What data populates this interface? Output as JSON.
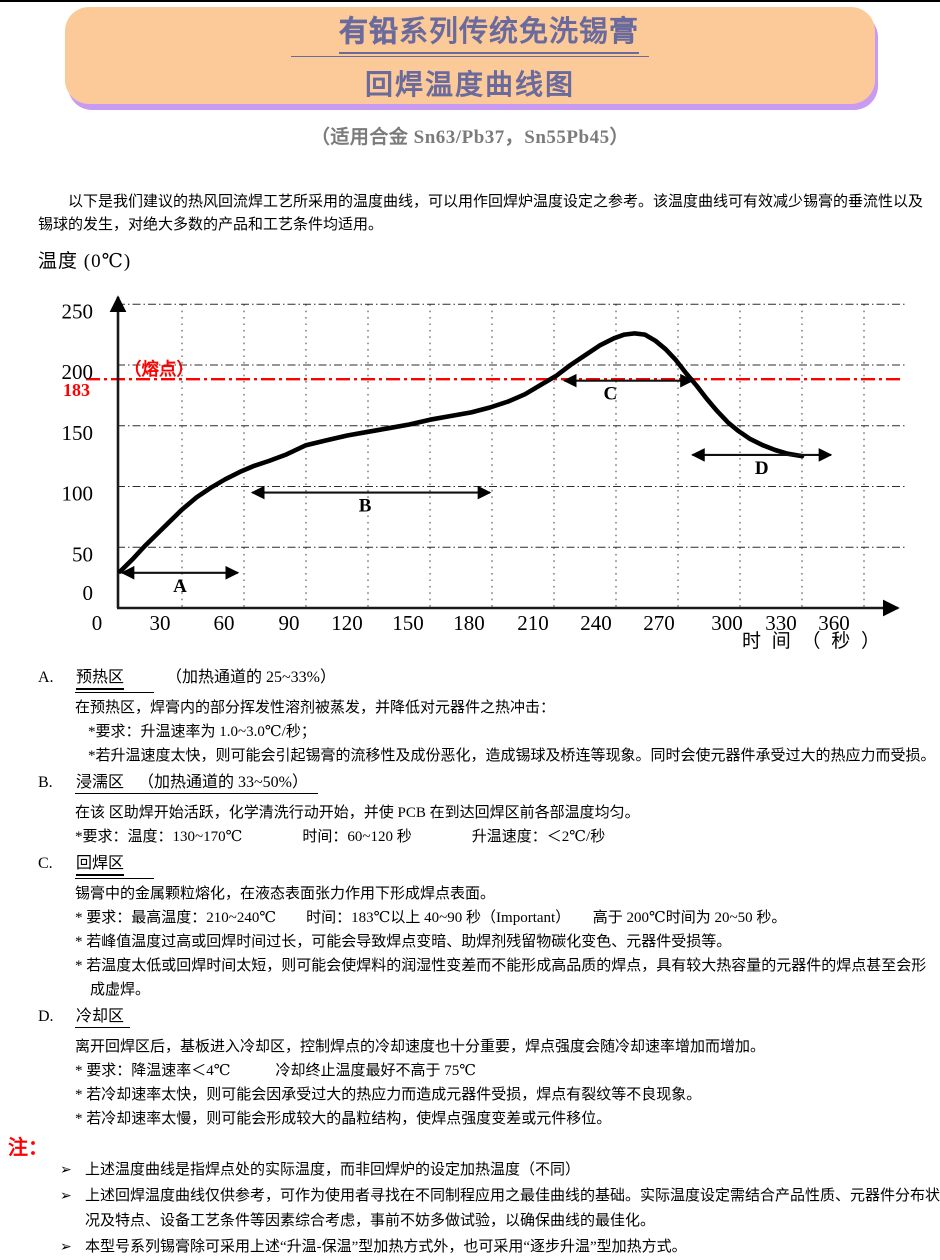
{
  "title": {
    "line1_bold": "有铅",
    "line1_rest": "系列传统免洗锡膏",
    "line2": "回焊温度曲线图",
    "subtitle": "（适用合金 Sn63/Pb37，Sn55Pb45）",
    "bg_color": "#fbca98",
    "shadow_color": "#c89af1",
    "text_color": "#6a6a9d"
  },
  "intro": "以下是我们建议的热风回流焊工艺所采用的温度曲线，可以用作回焊炉温度设定之参考。该温度曲线可有效减少锡膏的垂流性以及锡球的发生，对绝大多数的产品和工艺条件均适用。",
  "chart_data": {
    "type": "line",
    "title": "",
    "ylabel": "温度 (0℃)",
    "xlabel": "时 间 （ 秒 ）",
    "xlim": [
      0,
      390
    ],
    "ylim": [
      0,
      270
    ],
    "grid": true,
    "xticks": [
      0,
      30,
      60,
      90,
      120,
      150,
      180,
      210,
      240,
      270,
      300,
      330,
      360
    ],
    "yticks": [
      0,
      50,
      100,
      150,
      200,
      250
    ],
    "melting_point": {
      "value": 183,
      "label": "（熔点）",
      "tick_label": "183",
      "color": "#ff0000"
    },
    "series": [
      {
        "name": "reflow-temperature-profile",
        "points": [
          [
            0,
            30
          ],
          [
            6,
            40
          ],
          [
            12,
            51
          ],
          [
            18,
            61
          ],
          [
            24,
            71
          ],
          [
            30,
            81
          ],
          [
            37,
            91
          ],
          [
            44,
            99
          ],
          [
            51,
            106
          ],
          [
            58,
            112
          ],
          [
            65,
            117
          ],
          [
            72,
            121
          ],
          [
            80,
            126
          ],
          [
            90,
            134
          ],
          [
            100,
            138
          ],
          [
            110,
            142
          ],
          [
            120,
            145
          ],
          [
            130,
            148
          ],
          [
            140,
            151
          ],
          [
            150,
            155
          ],
          [
            160,
            158
          ],
          [
            170,
            161
          ],
          [
            179,
            165
          ],
          [
            188,
            170
          ],
          [
            196,
            176
          ],
          [
            204,
            184
          ],
          [
            211,
            191
          ],
          [
            218,
            200
          ],
          [
            225,
            208
          ],
          [
            232,
            216
          ],
          [
            239,
            222
          ],
          [
            244,
            225
          ],
          [
            249,
            226
          ],
          [
            254,
            225
          ],
          [
            259,
            220
          ],
          [
            264,
            213
          ],
          [
            269,
            204
          ],
          [
            274,
            193
          ],
          [
            279,
            183
          ],
          [
            284,
            172
          ],
          [
            289,
            162
          ],
          [
            294,
            153
          ],
          [
            299,
            146
          ],
          [
            305,
            139
          ],
          [
            311,
            134
          ],
          [
            317,
            130
          ],
          [
            323,
            127
          ],
          [
            330,
            125
          ]
        ]
      }
    ],
    "zones": [
      {
        "label": "A",
        "t1": 1,
        "t2": 57,
        "T": 29
      },
      {
        "label": "B",
        "t1": 64,
        "t2": 179,
        "T": 95
      },
      {
        "label": "C",
        "t1": 215,
        "t2": 277,
        "T": 183
      },
      {
        "label": "D",
        "t1": 277,
        "t2": 344,
        "T": 126
      }
    ]
  },
  "sections": [
    {
      "letter": "A.",
      "zone": "预热区",
      "suffix": "（加热通道的 25~33%）",
      "lines": [
        "在预热区，焊膏内的部分挥发性溶剂被蒸发，并降低对元器件之热冲击：",
        "*要求：升温速率为 1.0~3.0℃/秒；",
        "*若升温速度太快，则可能会引起锡膏的流移性及成份恶化，造成锡球及桥连等现象。同时会使元器件承受过大的热应力而受损。"
      ]
    },
    {
      "letter": "B.",
      "zone": "浸濡区",
      "suffix": "（加热通道的 33~50%）",
      "lines": [
        "在该 区助焊开始活跃，化学清洗行动开始，并使 PCB 在到达回焊区前各部温度均匀。",
        "*要求：温度：130~170℃　　　　时间：60~120 秒　　　　升温速度：＜2℃/秒"
      ]
    },
    {
      "letter": "C.",
      "zone": "回焊区",
      "suffix": "",
      "lines": [
        "锡膏中的金属颗粒熔化，在液态表面张力作用下形成焊点表面。",
        "* 要求：最高温度：210~240℃　　时间：183℃以上 40~90 秒（Important）　　高于 200℃时间为 20~50 秒。",
        "* 若峰值温度过高或回焊时间过长，可能会导致焊点变暗、助焊剂残留物碳化变色、元器件受损等。",
        "* 若温度太低或回焊时间太短，则可能会使焊料的润湿性变差而不能形成高品质的焊点，具有较大热容量的元器件的焊点甚至会形成虚焊。"
      ]
    },
    {
      "letter": "D.",
      "zone": "冷却区",
      "suffix": "",
      "lines": [
        "离开回焊区后，基板进入冷却区，控制焊点的冷却速度也十分重要，焊点强度会随冷却速率增加而增加。",
        "* 要求：降温速率＜4℃　　　冷却终止温度最好不高于 75℃",
        "* 若冷却速率太快，则可能会因承受过大的热应力而造成元器件受损，焊点有裂纹等不良现象。",
        "* 若冷却速率太慢，则可能会形成较大的晶粒结构，使焊点强度变差或元件移位。"
      ]
    }
  ],
  "notes": {
    "label": "注：",
    "marker": "➢",
    "items": [
      "上述温度曲线是指焊点处的实际温度，而非回焊炉的设定加热温度（不同）",
      "上述回焊温度曲线仅供参考，可作为使用者寻找在不同制程应用之最佳曲线的基础。实际温度设定需结合产品性质、元器件分布状况及特点、设备工艺条件等因素综合考虑，事前不妨多做试验，以确保曲线的最佳化。",
      "本型号系列锡膏除可采用上述“升温-保温”型加热方式外，也可采用“逐步升温”型加热方式。"
    ]
  }
}
